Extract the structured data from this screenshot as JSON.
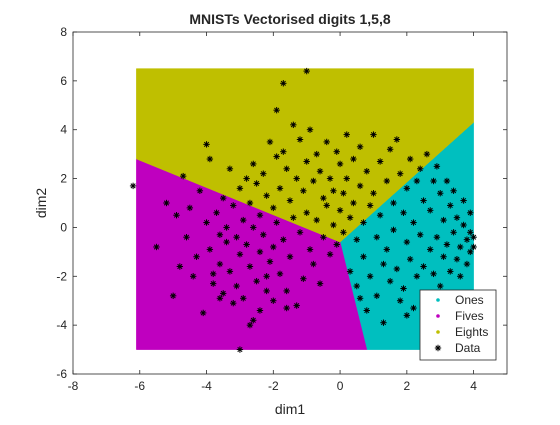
{
  "chart_data": {
    "type": "scatter",
    "title": "MNISTs Vectorised digits 1,5,8",
    "xlabel": "dim1",
    "ylabel": "dim2",
    "xlim": [
      -8,
      5
    ],
    "ylim": [
      -6,
      8
    ],
    "xticks": [
      "-8",
      "-6",
      "-4",
      "-2",
      "0",
      "2",
      "4"
    ],
    "xtick_values": [
      -8,
      -6,
      -4,
      -2,
      0,
      2,
      4
    ],
    "yticks": [
      "-6",
      "-4",
      "-2",
      "0",
      "2",
      "4",
      "6",
      "8"
    ],
    "ytick_values": [
      -6,
      -4,
      -2,
      0,
      2,
      4,
      6,
      8
    ],
    "grid": false,
    "legend_position": "bottom-right",
    "regions": [
      {
        "name": "Ones",
        "color": "#00bfbf",
        "polygon": [
          [
            0.0,
            -0.6
          ],
          [
            4.0,
            4.3
          ],
          [
            4.0,
            -5.0
          ],
          [
            0.8,
            -5.0
          ]
        ]
      },
      {
        "name": "Fives",
        "color": "#bf00bf",
        "polygon": [
          [
            -6.1,
            2.8
          ],
          [
            -6.1,
            -5.0
          ],
          [
            0.8,
            -5.0
          ],
          [
            0.0,
            -0.6
          ]
        ]
      },
      {
        "name": "Eights",
        "color": "#bfbf00",
        "polygon": [
          [
            -6.1,
            6.5
          ],
          [
            4.0,
            6.5
          ],
          [
            4.0,
            4.3
          ],
          [
            0.0,
            -0.6
          ],
          [
            -6.1,
            2.8
          ]
        ]
      }
    ],
    "series": [
      {
        "name": "Data",
        "color": "#000000",
        "marker": "asterisk",
        "points": [
          [
            -6.2,
            1.7
          ],
          [
            -5.5,
            -0.8
          ],
          [
            -5.2,
            1.0
          ],
          [
            -5.0,
            -2.8
          ],
          [
            -4.9,
            0.5
          ],
          [
            -4.8,
            -1.6
          ],
          [
            -4.7,
            2.1
          ],
          [
            -4.6,
            -0.4
          ],
          [
            -4.5,
            0.8
          ],
          [
            -4.4,
            -2.0
          ],
          [
            -4.3,
            -1.2
          ],
          [
            -4.2,
            1.5
          ],
          [
            -4.1,
            -3.5
          ],
          [
            -4.0,
            0.2
          ],
          [
            -4.0,
            3.4
          ],
          [
            -3.9,
            -0.9
          ],
          [
            -3.9,
            2.8
          ],
          [
            -3.8,
            -1.9
          ],
          [
            -3.8,
            -2.3
          ],
          [
            -3.7,
            0.6
          ],
          [
            -3.6,
            -0.3
          ],
          [
            -3.6,
            -1.5
          ],
          [
            -3.5,
            1.2
          ],
          [
            -3.5,
            -2.7
          ],
          [
            -3.4,
            0.0
          ],
          [
            -3.4,
            -0.6
          ],
          [
            -3.3,
            2.4
          ],
          [
            -3.3,
            -1.8
          ],
          [
            -3.2,
            0.9
          ],
          [
            -3.2,
            -3.1
          ],
          [
            -3.1,
            -0.4
          ],
          [
            -3.1,
            -2.4
          ],
          [
            -3.0,
            1.6
          ],
          [
            -3.0,
            -1.1
          ],
          [
            -3.0,
            -5.0
          ],
          [
            -2.9,
            0.3
          ],
          [
            -2.9,
            -2.9
          ],
          [
            -2.8,
            2.0
          ],
          [
            -2.8,
            -0.7
          ],
          [
            -2.7,
            1.0
          ],
          [
            -2.7,
            -1.6
          ],
          [
            -2.7,
            -4.0
          ],
          [
            -2.6,
            2.6
          ],
          [
            -2.6,
            0.0
          ],
          [
            -2.6,
            -3.8
          ],
          [
            -2.5,
            1.8
          ],
          [
            -2.5,
            -2.2
          ],
          [
            -2.4,
            0.5
          ],
          [
            -2.4,
            -1.0
          ],
          [
            -2.4,
            -3.4
          ],
          [
            -2.3,
            2.2
          ],
          [
            -2.3,
            -0.3
          ],
          [
            -2.2,
            1.3
          ],
          [
            -2.2,
            -2.6
          ],
          [
            -2.1,
            3.5
          ],
          [
            -2.1,
            -1.4
          ],
          [
            -2.0,
            0.8
          ],
          [
            -2.0,
            -0.8
          ],
          [
            -2.0,
            -3.0
          ],
          [
            -1.9,
            4.8
          ],
          [
            -1.9,
            2.9
          ],
          [
            -1.9,
            0.2
          ],
          [
            -1.8,
            1.6
          ],
          [
            -1.8,
            -1.9
          ],
          [
            -1.7,
            5.9
          ],
          [
            -1.7,
            3.1
          ],
          [
            -1.7,
            -0.5
          ],
          [
            -1.6,
            2.4
          ],
          [
            -1.6,
            -2.6
          ],
          [
            -1.5,
            1.1
          ],
          [
            -1.5,
            -1.2
          ],
          [
            -1.4,
            4.2
          ],
          [
            -1.4,
            0.4
          ],
          [
            -1.3,
            2.0
          ],
          [
            -1.3,
            -3.2
          ],
          [
            -1.2,
            3.6
          ],
          [
            -1.2,
            -0.2
          ],
          [
            -1.1,
            1.5
          ],
          [
            -1.1,
            -2.1
          ],
          [
            -1.0,
            6.4
          ],
          [
            -1.0,
            2.7
          ],
          [
            -1.0,
            0.6
          ],
          [
            -0.9,
            -0.9
          ],
          [
            -0.9,
            4.0
          ],
          [
            -0.8,
            1.9
          ],
          [
            -0.8,
            -1.5
          ],
          [
            -0.7,
            3.0
          ],
          [
            -0.7,
            0.3
          ],
          [
            -0.6,
            2.3
          ],
          [
            -0.6,
            -2.3
          ],
          [
            -0.5,
            1.2
          ],
          [
            -0.5,
            -0.4
          ],
          [
            -0.4,
            3.5
          ],
          [
            -0.4,
            0.9
          ],
          [
            -0.3,
            2.0
          ],
          [
            -0.3,
            -1.1
          ],
          [
            -0.2,
            1.5
          ],
          [
            -0.2,
            0.1
          ],
          [
            -0.1,
            3.1
          ],
          [
            -0.1,
            -0.7
          ],
          [
            0.0,
            2.6
          ],
          [
            0.0,
            0.7
          ],
          [
            0.1,
            1.4
          ],
          [
            0.1,
            -0.2
          ],
          [
            0.2,
            3.8
          ],
          [
            0.2,
            2.0
          ],
          [
            0.3,
            0.4
          ],
          [
            0.3,
            -1.8
          ],
          [
            0.4,
            2.8
          ],
          [
            0.4,
            1.0
          ],
          [
            0.5,
            -0.5
          ],
          [
            0.5,
            -2.4
          ],
          [
            0.6,
            1.7
          ],
          [
            0.6,
            3.3
          ],
          [
            0.7,
            0.2
          ],
          [
            0.7,
            -1.2
          ],
          [
            0.8,
            2.3
          ],
          [
            0.8,
            -3.4
          ],
          [
            0.9,
            0.9
          ],
          [
            0.9,
            -2.0
          ],
          [
            1.0,
            3.8
          ],
          [
            1.0,
            1.4
          ],
          [
            1.1,
            -0.4
          ],
          [
            1.1,
            -2.8
          ],
          [
            1.2,
            2.7
          ],
          [
            1.2,
            0.5
          ],
          [
            1.3,
            -1.5
          ],
          [
            1.3,
            -3.9
          ],
          [
            1.4,
            1.9
          ],
          [
            1.4,
            -0.9
          ],
          [
            1.5,
            3.2
          ],
          [
            1.5,
            -2.2
          ],
          [
            1.6,
            1.0
          ],
          [
            1.6,
            -0.1
          ],
          [
            1.7,
            3.6
          ],
          [
            1.7,
            -1.7
          ],
          [
            1.8,
            2.2
          ],
          [
            1.8,
            -3.0
          ],
          [
            1.9,
            0.6
          ],
          [
            1.9,
            -2.5
          ],
          [
            2.0,
            1.6
          ],
          [
            2.0,
            -0.6
          ],
          [
            2.1,
            2.8
          ],
          [
            2.1,
            -1.3
          ],
          [
            2.2,
            0.2
          ],
          [
            2.2,
            -3.3
          ],
          [
            2.3,
            1.9
          ],
          [
            2.3,
            -2.0
          ],
          [
            2.4,
            -0.3
          ],
          [
            2.4,
            2.4
          ],
          [
            2.5,
            1.1
          ],
          [
            2.5,
            -1.6
          ],
          [
            2.6,
            3.0
          ],
          [
            2.6,
            -2.7
          ],
          [
            2.7,
            0.7
          ],
          [
            2.7,
            -0.9
          ],
          [
            2.8,
            1.9
          ],
          [
            2.8,
            -1.9
          ],
          [
            2.9,
            2.5
          ],
          [
            2.9,
            -0.4
          ],
          [
            3.0,
            1.4
          ],
          [
            3.0,
            -2.4
          ],
          [
            3.1,
            0.3
          ],
          [
            3.1,
            -1.2
          ],
          [
            3.2,
            1.9
          ],
          [
            3.2,
            -0.7
          ],
          [
            3.3,
            -1.8
          ],
          [
            3.3,
            0.9
          ],
          [
            3.4,
            -0.2
          ],
          [
            3.4,
            1.5
          ],
          [
            3.5,
            -1.3
          ],
          [
            3.5,
            0.4
          ],
          [
            3.6,
            -0.8
          ],
          [
            3.6,
            -2.0
          ],
          [
            3.7,
            0.1
          ],
          [
            3.7,
            1.1
          ],
          [
            3.8,
            -0.5
          ],
          [
            3.8,
            -1.5
          ],
          [
            3.9,
            -0.2
          ],
          [
            3.9,
            0.6
          ],
          [
            3.9,
            -1.0
          ],
          [
            4.0,
            -0.4
          ],
          [
            4.0,
            -0.8
          ],
          [
            -3.6,
            -2.9
          ],
          [
            -2.2,
            -2.0
          ],
          [
            -1.6,
            -3.3
          ],
          [
            0.6,
            -2.9
          ],
          [
            2.0,
            -3.6
          ],
          [
            2.9,
            -3.1
          ]
        ]
      }
    ],
    "legend": [
      {
        "label": "Ones",
        "color": "#00bfbf",
        "symbol": "dot"
      },
      {
        "label": "Fives",
        "color": "#bf00bf",
        "symbol": "dot"
      },
      {
        "label": "Eights",
        "color": "#bfbf00",
        "symbol": "dot"
      },
      {
        "label": "Data",
        "color": "#000000",
        "symbol": "asterisk"
      }
    ]
  }
}
